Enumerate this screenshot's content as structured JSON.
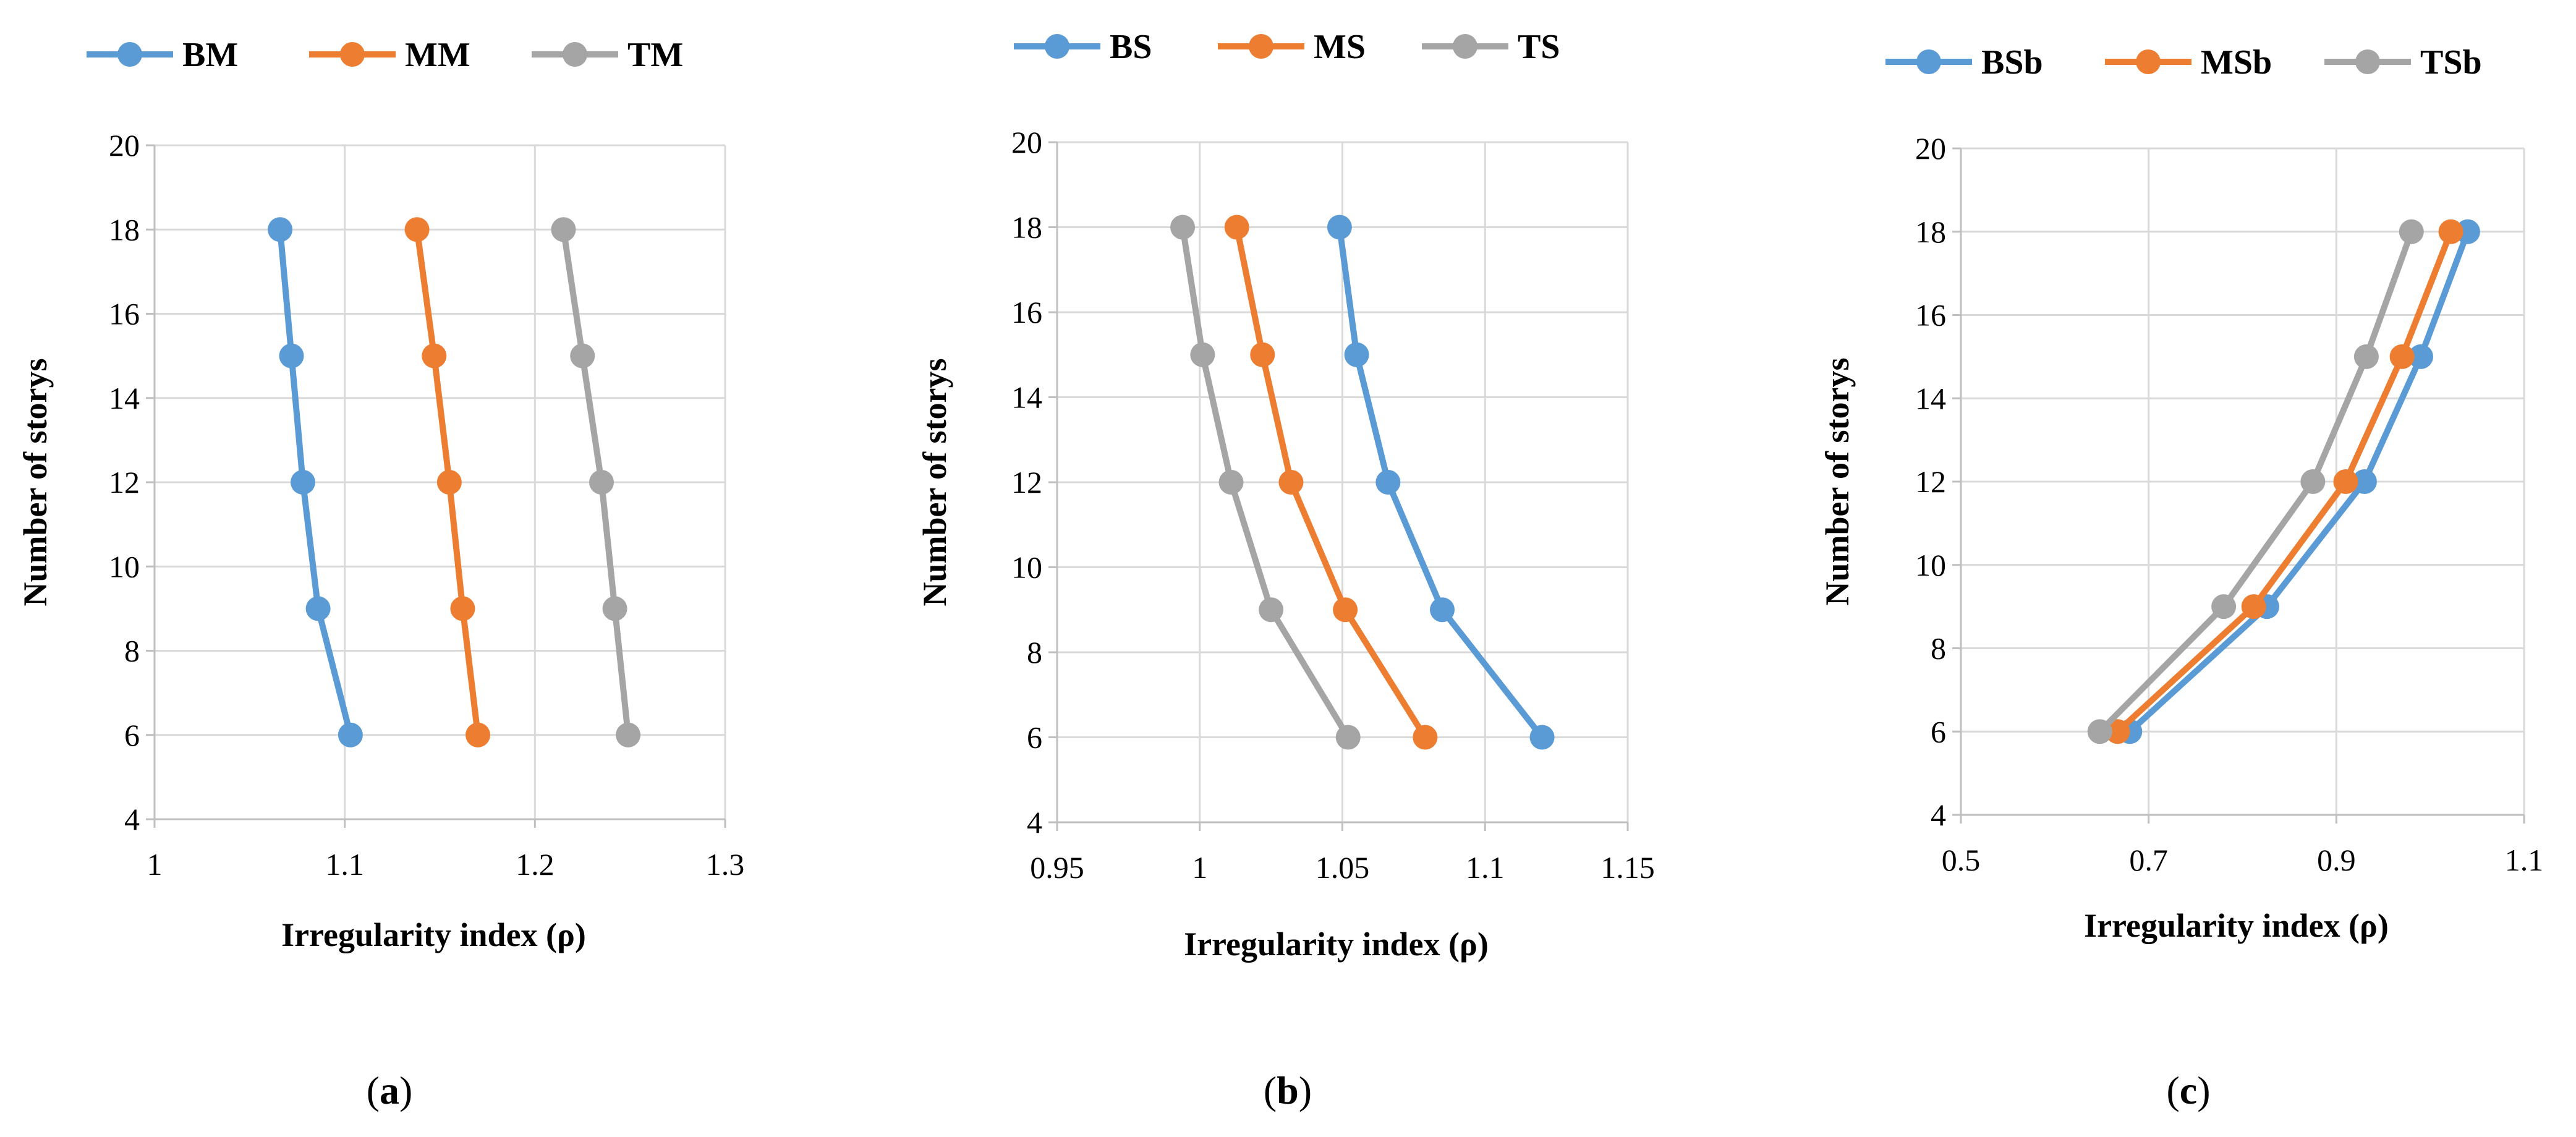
{
  "chart_data": [
    {
      "type": "line",
      "panel": "a",
      "xlabel": "Irregularity index (ρ)",
      "ylabel": "Number of storys",
      "xlim": [
        1,
        1.3
      ],
      "ylim": [
        4,
        20
      ],
      "xticks": [
        1,
        1.1,
        1.2,
        1.3
      ],
      "xtick_labels": [
        "1",
        "1.1",
        "1.2",
        "1.3"
      ],
      "yticks": [
        4,
        6,
        8,
        10,
        12,
        14,
        16,
        18,
        20
      ],
      "ytick_labels": [
        "4",
        "6",
        "8",
        "10",
        "12",
        "14",
        "16",
        "18",
        "20"
      ],
      "grid": true,
      "legend_position": "top",
      "series": [
        {
          "name": "BM",
          "color": "#5b9bd5",
          "points": [
            [
              1.103,
              6
            ],
            [
              1.086,
              9
            ],
            [
              1.078,
              12
            ],
            [
              1.072,
              15
            ],
            [
              1.066,
              18
            ]
          ]
        },
        {
          "name": "MM",
          "color": "#ed7d31",
          "points": [
            [
              1.17,
              6
            ],
            [
              1.162,
              9
            ],
            [
              1.155,
              12
            ],
            [
              1.147,
              15
            ],
            [
              1.138,
              18
            ]
          ]
        },
        {
          "name": "TM",
          "color": "#a5a5a5",
          "points": [
            [
              1.249,
              6
            ],
            [
              1.242,
              9
            ],
            [
              1.235,
              12
            ],
            [
              1.225,
              15
            ],
            [
              1.215,
              18
            ]
          ]
        }
      ]
    },
    {
      "type": "line",
      "panel": "b",
      "xlabel": "Irregularity index (ρ)",
      "ylabel": "Number of storys",
      "xlim": [
        0.95,
        1.15
      ],
      "ylim": [
        4,
        20
      ],
      "xticks": [
        0.95,
        1,
        1.05,
        1.1,
        1.15
      ],
      "xtick_labels": [
        "0.95",
        "1",
        "1.05",
        "1.1",
        "1.15"
      ],
      "yticks": [
        4,
        6,
        8,
        10,
        12,
        14,
        16,
        18,
        20
      ],
      "ytick_labels": [
        "4",
        "6",
        "8",
        "10",
        "12",
        "14",
        "16",
        "18",
        "20"
      ],
      "grid": true,
      "legend_position": "top",
      "series": [
        {
          "name": "BS",
          "color": "#5b9bd5",
          "points": [
            [
              1.12,
              6
            ],
            [
              1.085,
              9
            ],
            [
              1.066,
              12
            ],
            [
              1.055,
              15
            ],
            [
              1.049,
              18
            ]
          ]
        },
        {
          "name": "MS",
          "color": "#ed7d31",
          "points": [
            [
              1.079,
              6
            ],
            [
              1.051,
              9
            ],
            [
              1.032,
              12
            ],
            [
              1.022,
              15
            ],
            [
              1.013,
              18
            ]
          ]
        },
        {
          "name": "TS",
          "color": "#a5a5a5",
          "points": [
            [
              1.052,
              6
            ],
            [
              1.025,
              9
            ],
            [
              1.011,
              12
            ],
            [
              1.001,
              15
            ],
            [
              0.994,
              18
            ]
          ]
        }
      ]
    },
    {
      "type": "line",
      "panel": "c",
      "xlabel": "Irregularity index (ρ)",
      "ylabel": "Number of storys",
      "xlim": [
        0.5,
        1.1
      ],
      "ylim": [
        4,
        20
      ],
      "xticks": [
        0.5,
        0.7,
        0.9,
        1.1
      ],
      "xtick_labels": [
        "0.5",
        "0.7",
        "0.9",
        "1.1"
      ],
      "yticks": [
        4,
        6,
        8,
        10,
        12,
        14,
        16,
        18,
        20
      ],
      "ytick_labels": [
        "4",
        "6",
        "8",
        "10",
        "12",
        "14",
        "16",
        "18",
        "20"
      ],
      "grid": true,
      "legend_position": "top",
      "series": [
        {
          "name": "BSb",
          "color": "#5b9bd5",
          "points": [
            [
              0.68,
              6
            ],
            [
              0.826,
              9
            ],
            [
              0.93,
              12
            ],
            [
              0.99,
              15
            ],
            [
              1.04,
              18
            ]
          ]
        },
        {
          "name": "MSb",
          "color": "#ed7d31",
          "points": [
            [
              0.667,
              6
            ],
            [
              0.812,
              9
            ],
            [
              0.91,
              12
            ],
            [
              0.97,
              15
            ],
            [
              1.022,
              18
            ]
          ]
        },
        {
          "name": "TSb",
          "color": "#a5a5a5",
          "points": [
            [
              0.648,
              6
            ],
            [
              0.78,
              9
            ],
            [
              0.875,
              12
            ],
            [
              0.932,
              15
            ],
            [
              0.98,
              18
            ]
          ]
        }
      ]
    }
  ],
  "panel_labels": [
    "(a)",
    "(b)",
    "(c)"
  ],
  "panel_letters": [
    "a",
    "b",
    "c"
  ]
}
